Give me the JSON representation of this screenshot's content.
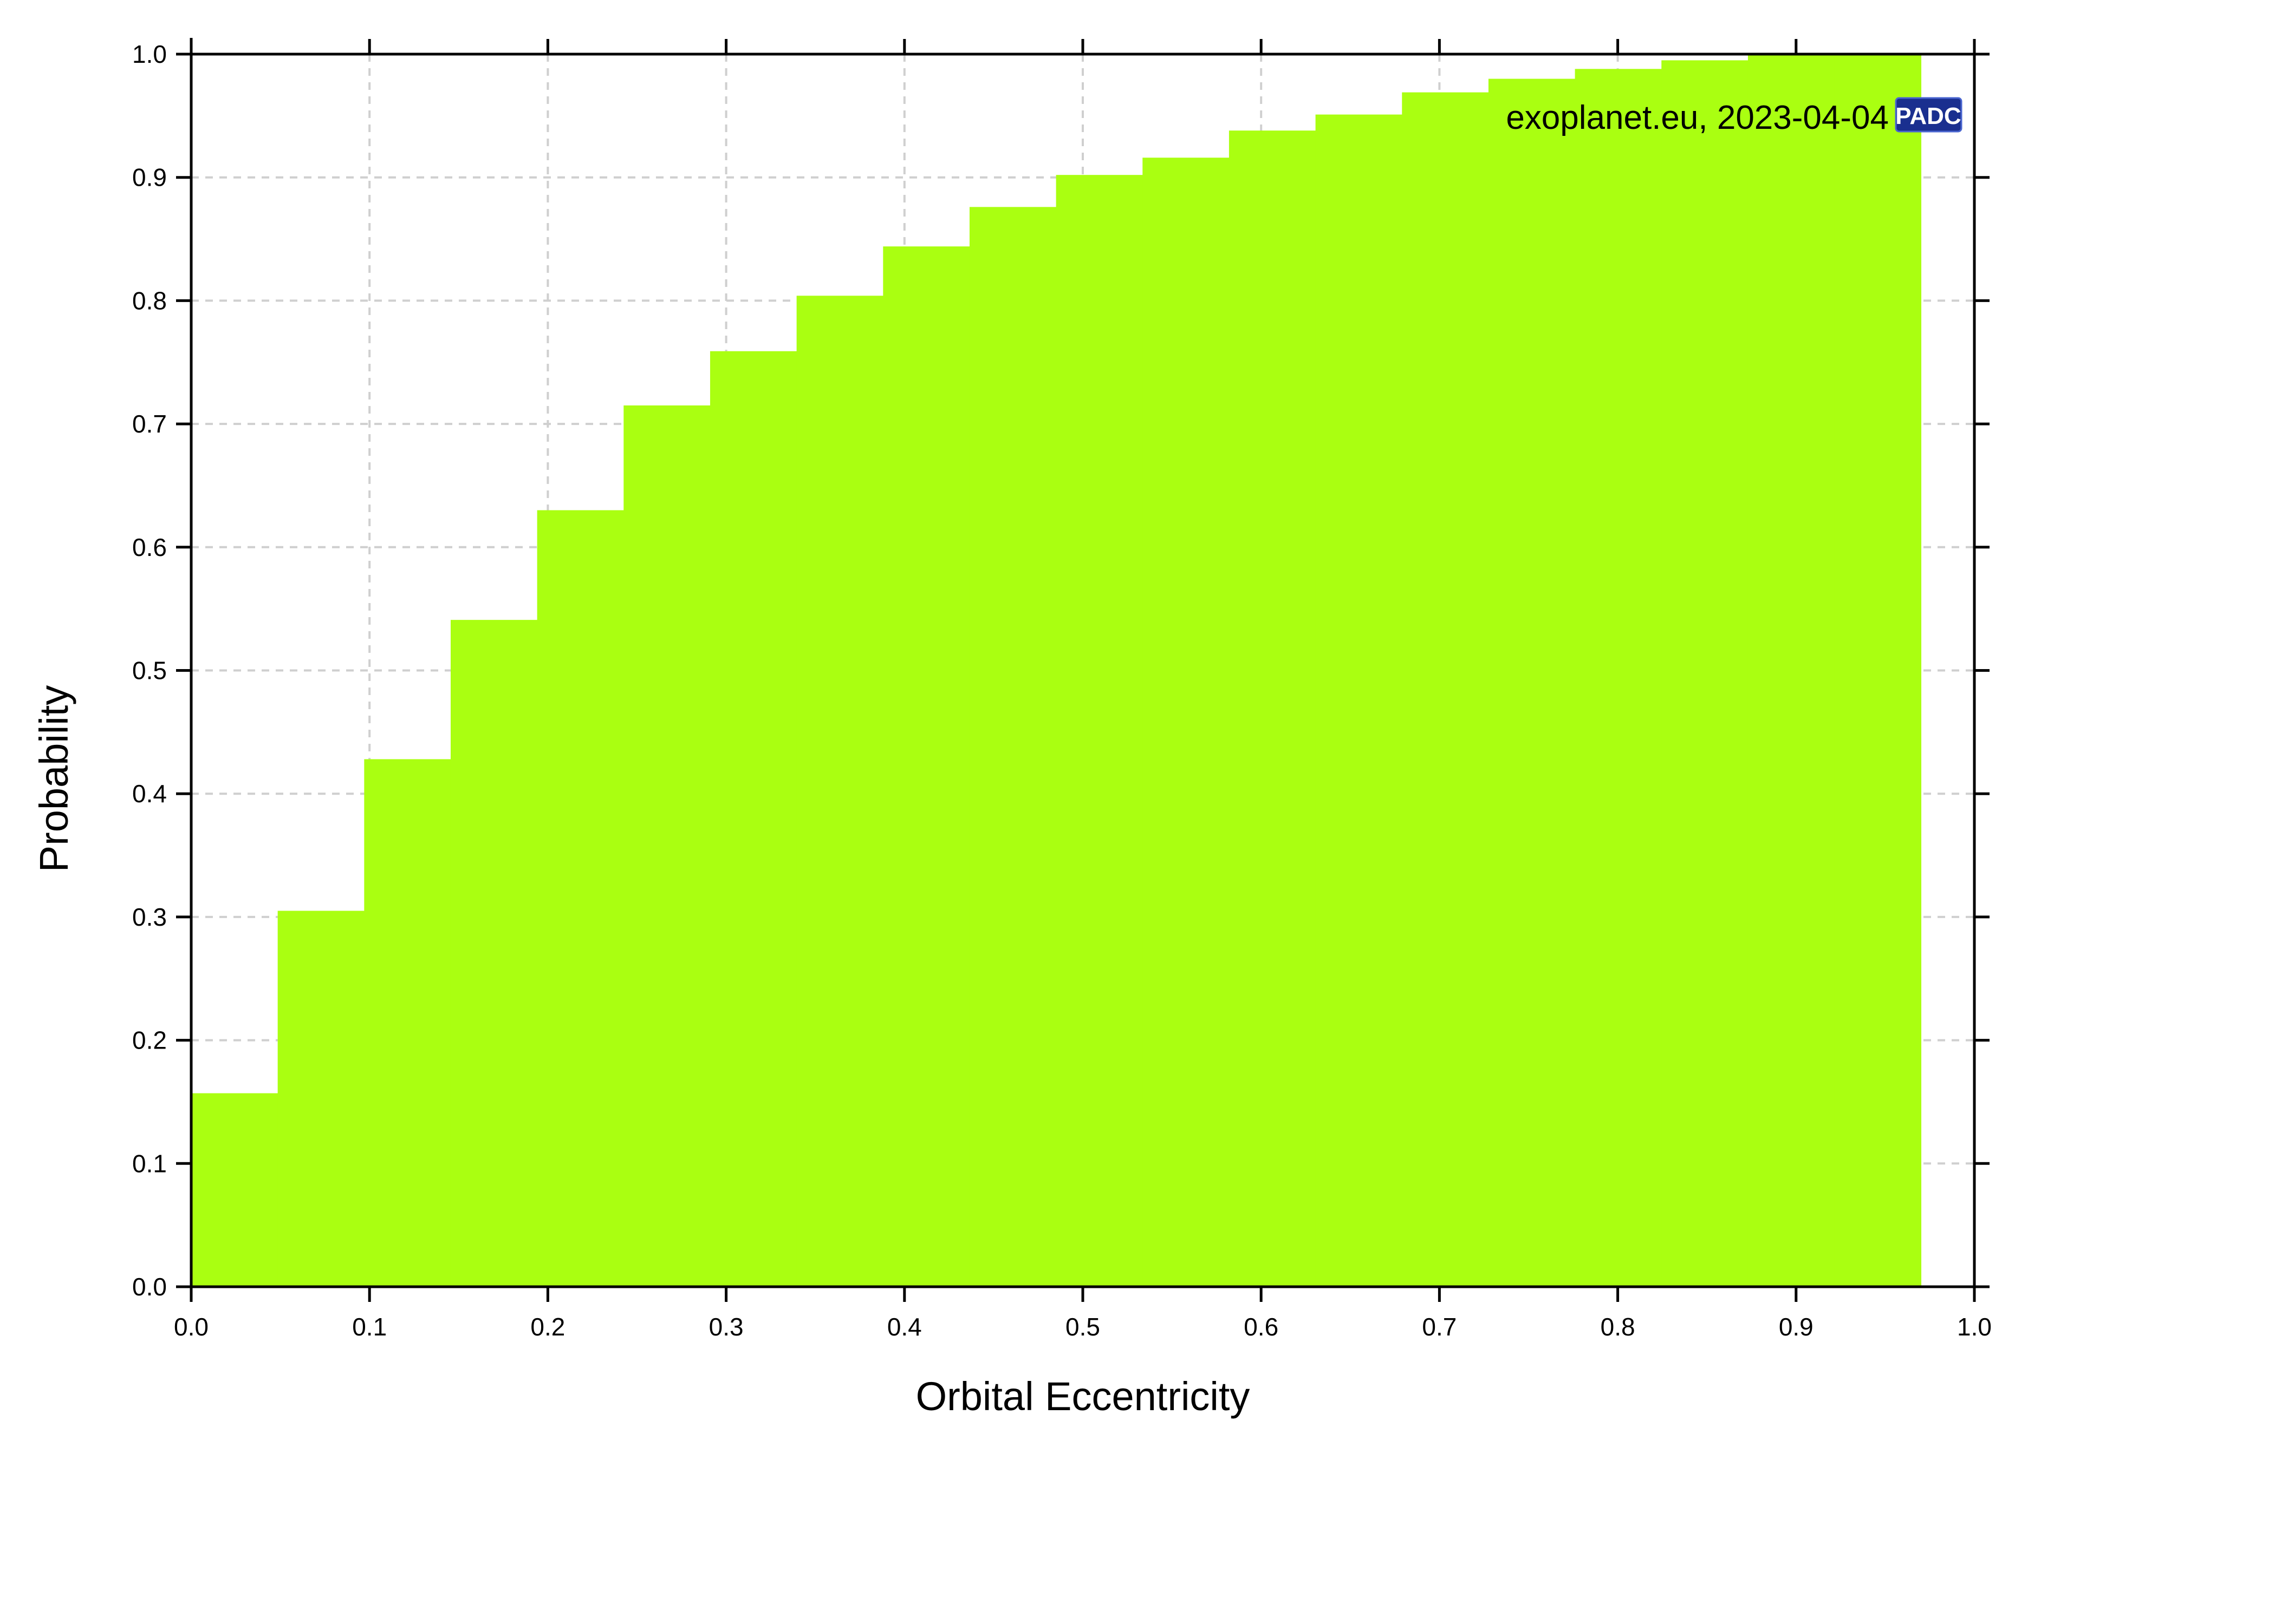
{
  "chart_data": {
    "type": "bar",
    "title": "",
    "xlabel": "Orbital Eccentricity",
    "ylabel": "Probability",
    "xlim": [
      0.0,
      1.0
    ],
    "ylim": [
      0.0,
      1.0
    ],
    "grid": true,
    "bar_color": "#aaff11",
    "bin_edges": [
      0.0,
      0.0485,
      0.097,
      0.1455,
      0.194,
      0.2425,
      0.291,
      0.3395,
      0.388,
      0.4365,
      0.485,
      0.5335,
      0.582,
      0.6305,
      0.679,
      0.7275,
      0.776,
      0.8245,
      0.873,
      0.9215,
      0.97
    ],
    "values": [
      0.157,
      0.305,
      0.428,
      0.541,
      0.63,
      0.715,
      0.759,
      0.804,
      0.844,
      0.876,
      0.902,
      0.916,
      0.938,
      0.951,
      0.969,
      0.98,
      0.988,
      0.995,
      0.999,
      1.0
    ],
    "x_ticks": [
      "0.0",
      "0.1",
      "0.2",
      "0.3",
      "0.4",
      "0.5",
      "0.6",
      "0.7",
      "0.8",
      "0.9",
      "1.0"
    ],
    "y_ticks": [
      "0.0",
      "0.1",
      "0.2",
      "0.3",
      "0.4",
      "0.5",
      "0.6",
      "0.7",
      "0.8",
      "0.9",
      "1.0"
    ],
    "annotation": "exoplanet.eu, 2023-04-04",
    "logo_text": "PADC",
    "logo_color": "#1a2f8f"
  }
}
